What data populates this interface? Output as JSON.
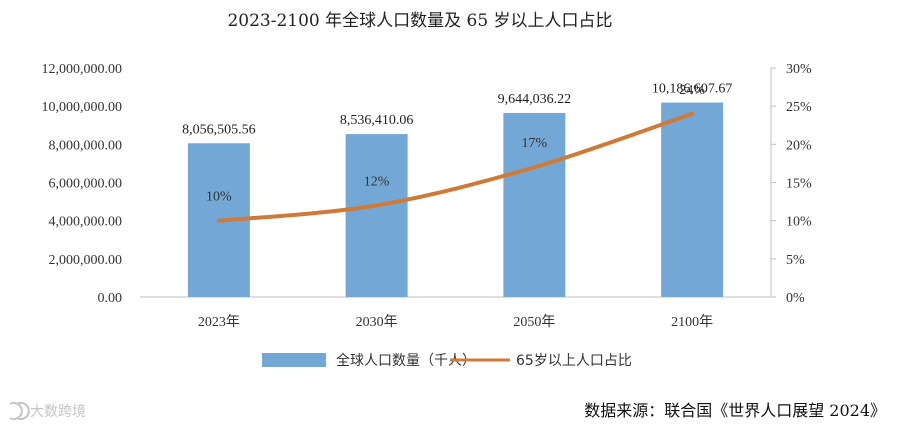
{
  "chart_data": {
    "type": "bar",
    "title": "2023-2100 年全球人口数量及 65 岁以上人口占比",
    "categories": [
      "2023年",
      "2030年",
      "2050年",
      "2100年"
    ],
    "series": [
      {
        "name": "全球人口数量（千人）",
        "kind": "bar",
        "axis": "left",
        "values": [
          8056505.56,
          8536410.06,
          9644036.22,
          10186607.67
        ],
        "labels": [
          "8,056,505.56",
          "8,536,410.06",
          "9,644,036.22",
          "10,186,607.67"
        ]
      },
      {
        "name": "65岁以上人口占比",
        "kind": "line",
        "axis": "right",
        "values": [
          10,
          12,
          17,
          24
        ],
        "labels": [
          "10%",
          "12%",
          "17%",
          "24%"
        ]
      }
    ],
    "ylim": [
      0,
      12000000
    ],
    "y_ticks": [
      "0.00",
      "2,000,000.00",
      "4,000,000.00",
      "6,000,000.00",
      "8,000,000.00",
      "10,000,000.00",
      "12,000,000.00"
    ],
    "y2lim": [
      0,
      30
    ],
    "y2_ticks": [
      "0%",
      "5%",
      "10%",
      "15%",
      "20%",
      "25%",
      "30%"
    ],
    "grid": false,
    "legend_position": "bottom"
  },
  "colors": {
    "bar": "#73a7d6",
    "line": "#cf7a36",
    "axis": "#bfbfbf"
  },
  "source": "数据来源：联合国《世界人口展望 2024》",
  "watermark": {
    "text": "大数跨境",
    "icon": "logo-icon"
  }
}
